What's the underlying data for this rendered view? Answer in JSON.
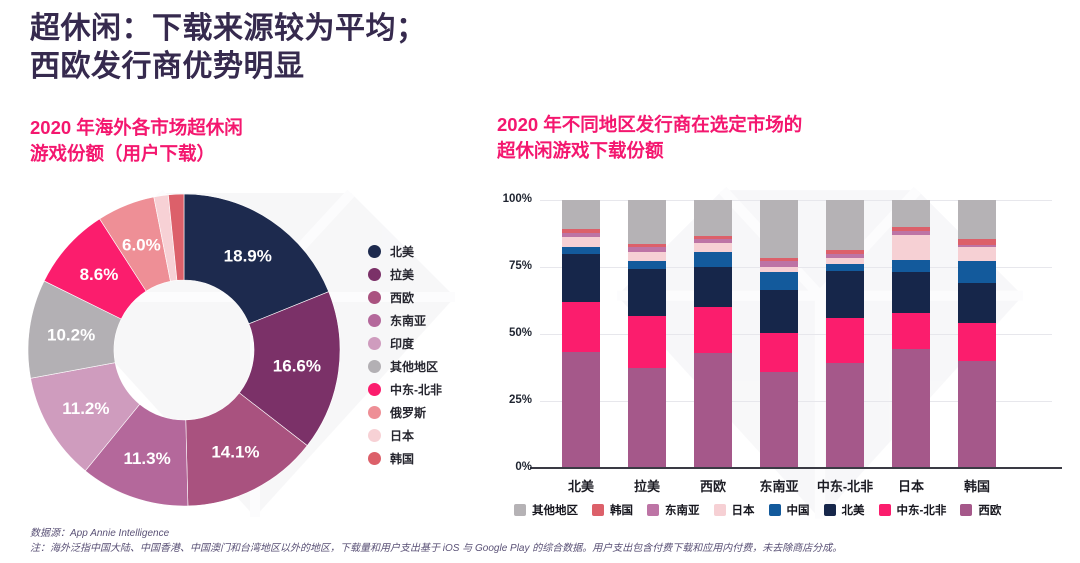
{
  "page": {
    "title": "超休闲：下载来源较为平均；\n西欧发行商优势明显",
    "watermark_icon": "gem-diamond-logo",
    "footer": {
      "source": "数据源：App Annie Intelligence",
      "note": "注：海外泛指中国大陆、中国香港、中国澳门和台湾地区以外的地区，下载量和用户支出基于 iOS 与 Google Play 的综合数据。用户支出包含付费下载和应用内付费，未去除商店分成。"
    }
  },
  "colors": {
    "title": "#362a4e",
    "accent_pink": "#f4176f",
    "footer_text": "#5a5176",
    "gridline": "#e7e7ec",
    "watermark": "#f0f0f4"
  },
  "chart_data": [
    {
      "type": "pie",
      "donut": true,
      "title": "2020 年海外各市场超休闲\n游戏份额（用户下载）",
      "unit": "%",
      "legend_position": "right",
      "slices": [
        {
          "label": "北美",
          "value": 18.9,
          "color": "#1d2a4e",
          "show_label": true
        },
        {
          "label": "拉美",
          "value": 16.6,
          "color": "#7b3168",
          "show_label": true
        },
        {
          "label": "西欧",
          "value": 14.1,
          "color": "#a9527f",
          "show_label": true
        },
        {
          "label": "东南亚",
          "value": 11.3,
          "color": "#b4689b",
          "show_label": true
        },
        {
          "label": "印度",
          "value": 11.2,
          "color": "#cf9cbe",
          "show_label": true
        },
        {
          "label": "其他地区",
          "value": 10.2,
          "color": "#b3b0b4",
          "show_label": true
        },
        {
          "label": "中东-北非",
          "value": 8.6,
          "color": "#fb1d6d",
          "show_label": true
        },
        {
          "label": "俄罗斯",
          "value": 6.0,
          "color": "#ee8f96",
          "show_label": true
        },
        {
          "label": "日本",
          "value": 1.5,
          "color": "#f7d1d5",
          "show_label": false
        },
        {
          "label": "韩国",
          "value": 1.6,
          "color": "#dc606a",
          "show_label": false
        }
      ]
    },
    {
      "type": "bar",
      "stacked": true,
      "title": "2020 年不同地区发行商在选定市场的\n超休闲游戏下载份额",
      "categories": [
        "北美",
        "拉美",
        "西欧",
        "东南亚",
        "中东-北非",
        "日本",
        "韩国"
      ],
      "y_ticks": [
        "100%",
        "75%",
        "50%",
        "25%",
        "0%"
      ],
      "ylim": [
        0,
        100
      ],
      "grid": true,
      "unit": "%",
      "series_note": "listed bottom-to-top of the stack",
      "series": [
        {
          "name": "西欧",
          "color": "#a5588a",
          "values": [
            43.3,
            37.4,
            42.9,
            35.9,
            39.2,
            44.5,
            39.8
          ]
        },
        {
          "name": "中东-北非",
          "color": "#fb1d6d",
          "values": [
            18.6,
            19.4,
            17.0,
            14.5,
            16.9,
            13.2,
            14.4
          ]
        },
        {
          "name": "北美",
          "color": "#16264a",
          "values": [
            18.0,
            17.3,
            15.2,
            16.1,
            17.5,
            15.4,
            14.7
          ]
        },
        {
          "name": "中国",
          "color": "#135a9c",
          "values": [
            2.6,
            3.2,
            5.6,
            6.6,
            2.5,
            4.7,
            8.3
          ]
        },
        {
          "name": "日本",
          "color": "#f6d0d4",
          "values": [
            3.8,
            3.3,
            3.4,
            1.8,
            2.2,
            9.2,
            5.1
          ]
        },
        {
          "name": "东南亚",
          "color": "#bd74a5",
          "values": [
            1.5,
            1.7,
            1.2,
            2.4,
            1.7,
            1.6,
            1.1
          ]
        },
        {
          "name": "韩国",
          "color": "#dc606a",
          "values": [
            1.3,
            1.2,
            1.1,
            1.2,
            1.5,
            1.4,
            2.1
          ]
        },
        {
          "name": "其他地区",
          "color": "#b5b2b5",
          "values": [
            10.9,
            16.5,
            13.6,
            21.5,
            18.5,
            10.0,
            14.5
          ]
        }
      ],
      "legend": [
        {
          "label": "其他地区",
          "color": "#b5b2b5"
        },
        {
          "label": "韩国",
          "color": "#dc606a"
        },
        {
          "label": "东南亚",
          "color": "#bd74a5"
        },
        {
          "label": "日本",
          "color": "#f6d0d4"
        },
        {
          "label": "中国",
          "color": "#135a9c"
        },
        {
          "label": "北美",
          "color": "#16264a"
        },
        {
          "label": "中东-北非",
          "color": "#fb1d6d"
        },
        {
          "label": "西欧",
          "color": "#a5588a"
        }
      ]
    }
  ]
}
